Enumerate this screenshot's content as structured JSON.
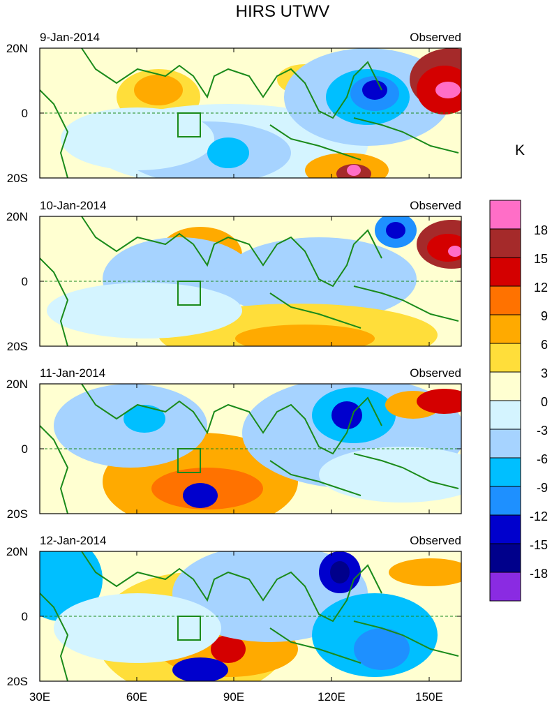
{
  "title": "HIRS UTWV",
  "panels": [
    {
      "date": "9-Jan-2014",
      "label": "Observed"
    },
    {
      "date": "10-Jan-2014",
      "label": "Observed"
    },
    {
      "date": "11-Jan-2014",
      "label": "Observed"
    },
    {
      "date": "12-Jan-2014",
      "label": "Observed"
    }
  ],
  "lat_ticks": [
    "20N",
    "0",
    "20S"
  ],
  "lon_ticks": [
    "30E",
    "60E",
    "90E",
    "120E",
    "150E"
  ],
  "colorbar": {
    "unit": "K",
    "labels": [
      "18",
      "15",
      "12",
      "9",
      "6",
      "3",
      "0",
      "-3",
      "-6",
      "-9",
      "-12",
      "-15",
      "-18"
    ],
    "colors": [
      "#ff6ec7",
      "#a52a2a",
      "#d40000",
      "#ff7200",
      "#ffaa00",
      "#ffde3a",
      "#ffffd1",
      "#d4f4ff",
      "#a6d3ff",
      "#00bfff",
      "#1e90ff",
      "#0000cd",
      "#00008b",
      "#8a2be2"
    ]
  }
}
